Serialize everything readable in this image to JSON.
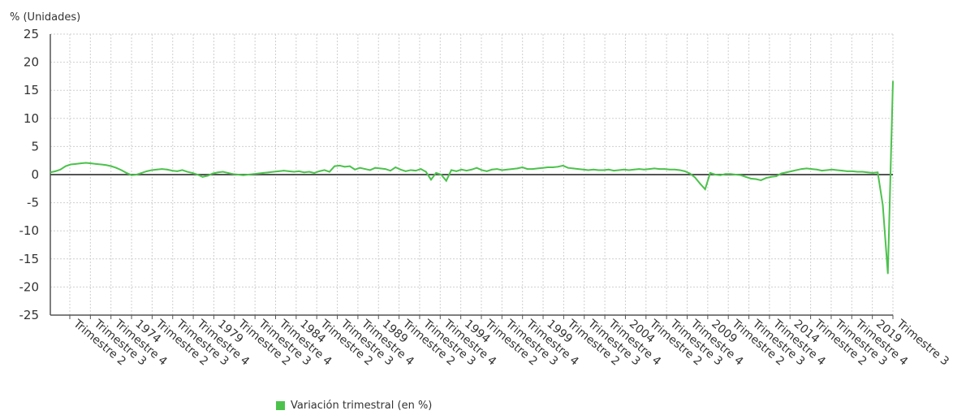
{
  "chart_data": {
    "type": "line",
    "ylabel": "% (Unidades)",
    "ylim": [
      -25,
      25
    ],
    "yticks": [
      25,
      20,
      15,
      10,
      5,
      0,
      -5,
      -10,
      -15,
      -20,
      -25
    ],
    "grid": true,
    "legend_position": "bottom-center",
    "line_color": "#4cc24c",
    "zero_line_color": "#555555",
    "x_tick_labels": [
      "Trimestre 2",
      "Trimestre 3",
      "Trimestre 4",
      "1974",
      "Trimestre 2",
      "Trimestre 3",
      "Trimestre 4",
      "1979",
      "Trimestre 2",
      "Trimestre 3",
      "Trimestre 4",
      "1984",
      "Trimestre 2",
      "Trimestre 3",
      "Trimestre 4",
      "1989",
      "Trimestre 2",
      "Trimestre 3",
      "Trimestre 4",
      "1994",
      "Trimestre 2",
      "Trimestre 3",
      "Trimestre 4",
      "1999",
      "Trimestre 2",
      "Trimestre 3",
      "Trimestre 4",
      "2004",
      "Trimestre 2",
      "Trimestre 3",
      "Trimestre 4",
      "2009",
      "Trimestre 2",
      "Trimestre 3",
      "Trimestre 4",
      "2014",
      "Trimestre 2",
      "Trimestre 3",
      "Trimestre 4",
      "2019",
      "Trimestre 3"
    ],
    "series": [
      {
        "name": "Variación trimestral (en %)",
        "values": [
          0.4,
          0.6,
          0.9,
          1.5,
          1.8,
          1.9,
          2.0,
          2.1,
          2.0,
          1.9,
          1.8,
          1.7,
          1.5,
          1.2,
          0.8,
          0.3,
          -0.1,
          0.0,
          0.3,
          0.6,
          0.8,
          0.9,
          1.0,
          0.9,
          0.7,
          0.6,
          0.8,
          0.5,
          0.3,
          0.0,
          -0.4,
          -0.2,
          0.2,
          0.4,
          0.5,
          0.3,
          0.1,
          0.0,
          -0.1,
          0.0,
          0.1,
          0.2,
          0.3,
          0.4,
          0.5,
          0.6,
          0.7,
          0.6,
          0.5,
          0.6,
          0.4,
          0.5,
          0.3,
          0.6,
          0.8,
          0.5,
          1.5,
          1.6,
          1.4,
          1.5,
          0.9,
          1.2,
          1.0,
          0.8,
          1.2,
          1.1,
          1.0,
          0.7,
          1.3,
          0.9,
          0.6,
          0.8,
          0.7,
          1.0,
          0.5,
          -0.9,
          0.3,
          0.0,
          -1.1,
          0.8,
          0.6,
          0.9,
          0.7,
          0.9,
          1.2,
          0.8,
          0.6,
          0.9,
          1.0,
          0.8,
          0.9,
          1.0,
          1.1,
          1.3,
          1.0,
          1.0,
          1.1,
          1.2,
          1.3,
          1.3,
          1.4,
          1.6,
          1.2,
          1.1,
          1.0,
          0.9,
          0.8,
          0.9,
          0.8,
          0.8,
          0.9,
          0.7,
          0.8,
          0.9,
          0.8,
          0.9,
          1.0,
          0.9,
          1.0,
          1.1,
          1.0,
          1.0,
          0.9,
          0.9,
          0.8,
          0.6,
          0.2,
          -0.5,
          -1.6,
          -2.6,
          0.3,
          0.0,
          -0.1,
          0.1,
          0.1,
          0.0,
          -0.1,
          -0.4,
          -0.7,
          -0.8,
          -1.0,
          -0.6,
          -0.4,
          -0.3,
          0.2,
          0.4,
          0.6,
          0.8,
          1.0,
          1.1,
          1.0,
          0.9,
          0.7,
          0.8,
          0.9,
          0.8,
          0.7,
          0.6,
          0.6,
          0.5,
          0.5,
          0.4,
          0.3,
          0.4,
          -5.4,
          -17.6,
          16.6
        ]
      }
    ]
  }
}
